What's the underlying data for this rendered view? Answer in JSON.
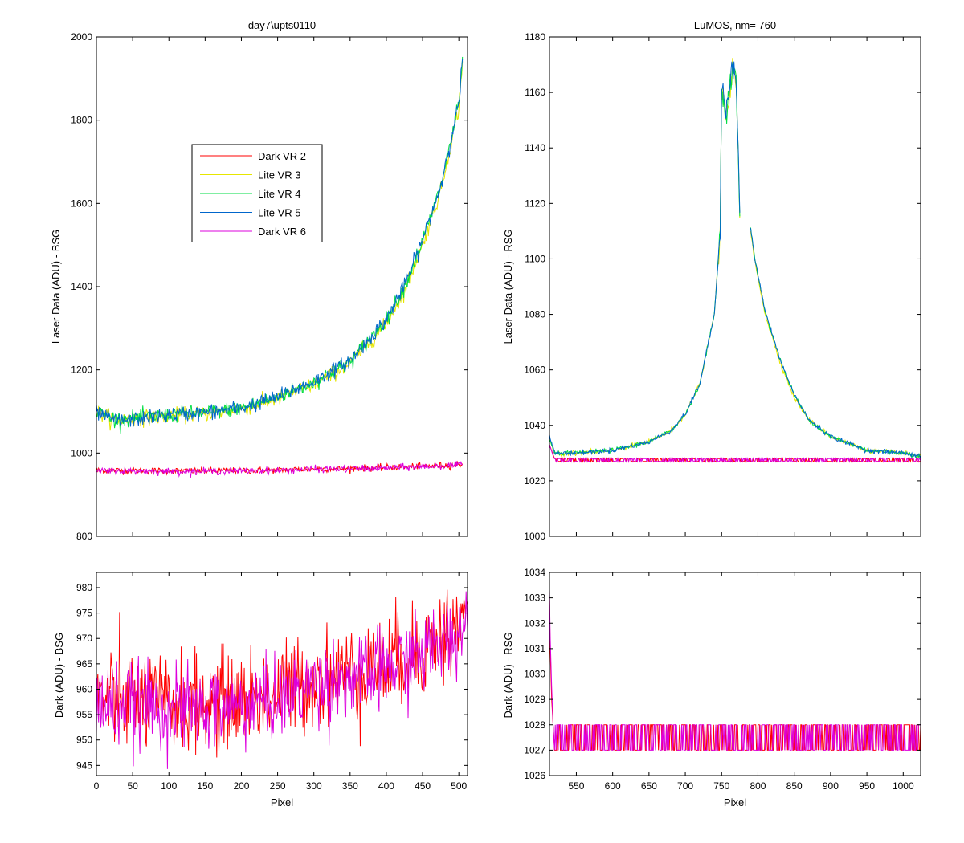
{
  "figure": {
    "left_title": "day7\\upts0110",
    "right_title": "LuMOS, nm= 760"
  },
  "colors": {
    "Dark VR 2": "#ff0000",
    "Lite VR 3": "#e6e600",
    "Lite VR 4": "#00dd44",
    "Lite VR 5": "#0066cc",
    "Dark VR 6": "#dd00dd"
  },
  "chart_data": [
    {
      "id": "top-left",
      "type": "line",
      "title": "day7\\upts0110",
      "xlabel": "",
      "ylabel": "Laser Data (ADU) - BSG",
      "xlim": [
        0,
        512
      ],
      "ylim": [
        800,
        2000
      ],
      "xticks": [
        0,
        50,
        100,
        150,
        200,
        250,
        300,
        350,
        400,
        450,
        500
      ],
      "yticks": [
        800,
        1000,
        1200,
        1400,
        1600,
        1800,
        2000
      ],
      "show_xtick_labels": false,
      "legend": {
        "placement": "upper-left-center",
        "entries": [
          "Dark VR 2",
          "Lite VR 3",
          "Lite VR 4",
          "Lite VR 5",
          "Dark VR 6"
        ]
      },
      "series": [
        {
          "name": "Dark VR 2",
          "x": [
            0,
            50,
            100,
            150,
            200,
            250,
            300,
            350,
            400,
            450,
            500,
            512
          ],
          "y": [
            958,
            958,
            957,
            957,
            958,
            959,
            962,
            963,
            965,
            968,
            972,
            976
          ]
        },
        {
          "name": "Lite VR 3",
          "x": [
            0,
            25,
            50,
            100,
            150,
            200,
            250,
            300,
            350,
            400,
            425,
            450,
            475,
            500,
            505
          ],
          "y": [
            1100,
            1080,
            1082,
            1090,
            1095,
            1105,
            1130,
            1165,
            1215,
            1310,
            1390,
            1500,
            1630,
            1830,
            1935
          ]
        },
        {
          "name": "Lite VR 4",
          "x": [
            0,
            25,
            50,
            100,
            150,
            200,
            250,
            300,
            350,
            400,
            425,
            450,
            475,
            500,
            505
          ],
          "y": [
            1100,
            1082,
            1083,
            1092,
            1097,
            1108,
            1135,
            1170,
            1220,
            1320,
            1400,
            1510,
            1640,
            1840,
            1940
          ]
        },
        {
          "name": "Lite VR 5",
          "x": [
            0,
            25,
            50,
            100,
            150,
            200,
            250,
            300,
            350,
            400,
            425,
            450,
            475,
            500,
            505
          ],
          "y": [
            1098,
            1078,
            1080,
            1092,
            1097,
            1108,
            1135,
            1172,
            1222,
            1322,
            1402,
            1512,
            1642,
            1842,
            1942
          ]
        },
        {
          "name": "Dark VR 6",
          "x": [
            0,
            50,
            100,
            150,
            200,
            250,
            300,
            350,
            400,
            450,
            500,
            512
          ],
          "y": [
            957,
            957,
            956,
            956,
            957,
            958,
            961,
            962,
            964,
            967,
            971,
            975
          ]
        }
      ]
    },
    {
      "id": "top-right",
      "type": "line",
      "title": "LuMOS, nm= 760",
      "xlabel": "",
      "ylabel": "Laser Data (ADU) - RSG",
      "xlim": [
        513,
        1024
      ],
      "ylim": [
        1000,
        1180
      ],
      "xticks": [
        550,
        600,
        650,
        700,
        750,
        800,
        850,
        900,
        950,
        1000
      ],
      "yticks": [
        1000,
        1020,
        1040,
        1060,
        1080,
        1100,
        1120,
        1140,
        1160,
        1180
      ],
      "show_xtick_labels": false,
      "series": [
        {
          "name": "Lite VR 3",
          "x": [
            513,
            520,
            550,
            600,
            650,
            680,
            700,
            720,
            740,
            748,
            750,
            755,
            760,
            765,
            770,
            775,
            790,
            795,
            810,
            830,
            850,
            870,
            900,
            950,
            1000,
            1024
          ],
          "y": [
            1035,
            1030,
            1030,
            1031,
            1034,
            1038,
            1044,
            1055,
            1080,
            1110,
            1160,
            1152,
            1158,
            1168,
            1163,
            1115,
            1110,
            1100,
            1080,
            1063,
            1050,
            1042,
            1036,
            1031,
            1030,
            1029
          ]
        },
        {
          "name": "Lite VR 4",
          "x": [
            513,
            520,
            550,
            600,
            650,
            680,
            700,
            720,
            740,
            748,
            750,
            755,
            760,
            765,
            770,
            775,
            790,
            795,
            810,
            830,
            850,
            870,
            900,
            950,
            1000,
            1024
          ],
          "y": [
            1035,
            1030,
            1030,
            1031,
            1034,
            1038,
            1044,
            1055,
            1080,
            1110,
            1162,
            1153,
            1159,
            1169,
            1164,
            1116,
            1111,
            1101,
            1081,
            1064,
            1051,
            1042,
            1036,
            1031,
            1030,
            1029
          ]
        },
        {
          "name": "Lite VR 5",
          "x": [
            513,
            520,
            550,
            600,
            650,
            680,
            700,
            720,
            740,
            748,
            750,
            755,
            760,
            765,
            770,
            775,
            790,
            795,
            810,
            830,
            850,
            870,
            900,
            950,
            1000,
            1024
          ],
          "y": [
            1036,
            1030,
            1030,
            1031,
            1034,
            1038,
            1044,
            1055,
            1080,
            1110,
            1164,
            1155,
            1160,
            1170,
            1165,
            1117,
            1111,
            1101,
            1081,
            1064,
            1051,
            1042,
            1036,
            1031,
            1030,
            1029
          ]
        },
        {
          "name": "Dark VR 2",
          "x": [
            513,
            520,
            600,
            700,
            800,
            900,
            1000,
            1024
          ],
          "y": [
            1033,
            1028,
            1027.5,
            1027.5,
            1027.5,
            1027.5,
            1027.5,
            1027.5
          ]
        },
        {
          "name": "Dark VR 6",
          "x": [
            513,
            520,
            600,
            700,
            800,
            900,
            1000,
            1024
          ],
          "y": [
            1033,
            1027.5,
            1027.5,
            1027.5,
            1027.5,
            1027.5,
            1027.5,
            1027.5
          ]
        }
      ]
    },
    {
      "id": "bottom-left",
      "type": "line",
      "title": "",
      "xlabel": "Pixel",
      "ylabel": "Dark (ADU) - BSG",
      "xlim": [
        0,
        512
      ],
      "ylim": [
        943,
        983
      ],
      "xticks": [
        0,
        50,
        100,
        150,
        200,
        250,
        300,
        350,
        400,
        450,
        500
      ],
      "yticks": [
        945,
        950,
        955,
        960,
        965,
        970,
        975,
        980
      ],
      "show_xtick_labels": true,
      "series": [
        {
          "name": "Dark VR 2",
          "x": [
            0,
            50,
            100,
            150,
            200,
            250,
            300,
            350,
            400,
            450,
            500,
            512
          ],
          "y": [
            958,
            958,
            957,
            957,
            958,
            959,
            962,
            963,
            965,
            968,
            972,
            976
          ],
          "noise": 6
        },
        {
          "name": "Dark VR 6",
          "x": [
            0,
            50,
            100,
            150,
            200,
            250,
            300,
            350,
            400,
            450,
            500,
            512
          ],
          "y": [
            957,
            957,
            956,
            956,
            957,
            958,
            961,
            962,
            964,
            967,
            971,
            975
          ],
          "noise": 5
        }
      ]
    },
    {
      "id": "bottom-right",
      "type": "line",
      "title": "",
      "xlabel": "Pixel",
      "ylabel": "Dark (ADU) - RSG",
      "xlim": [
        513,
        1024
      ],
      "ylim": [
        1026,
        1034
      ],
      "xticks": [
        550,
        600,
        650,
        700,
        750,
        800,
        850,
        900,
        950,
        1000
      ],
      "yticks": [
        1026,
        1027,
        1028,
        1029,
        1030,
        1031,
        1032,
        1033,
        1034
      ],
      "show_xtick_labels": true,
      "series": [
        {
          "name": "Dark VR 2",
          "x": [
            513,
            514,
            516,
            518,
            520
          ],
          "y": [
            1033,
            1031,
            1029,
            1028,
            1027
          ]
        },
        {
          "name": "Dark VR 6",
          "x": [
            513,
            514,
            516,
            518,
            520
          ],
          "y": [
            1033.3,
            1031.5,
            1029.5,
            1028,
            1027
          ]
        }
      ],
      "quantized_levels": [
        1027,
        1028
      ]
    }
  ]
}
